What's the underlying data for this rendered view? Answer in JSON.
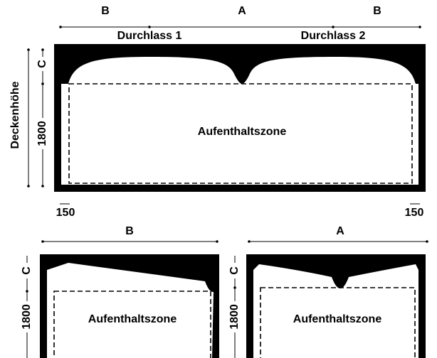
{
  "top": {
    "dims": [
      "B",
      "A",
      "B"
    ],
    "outlets": [
      "Durchlass 1",
      "Durchlass 2"
    ],
    "height_label": "Deckenhöhe",
    "c": "C",
    "h": 1800,
    "zone": "Aufenthaltszone",
    "margins": [
      150,
      150
    ]
  },
  "bottom": [
    {
      "dim": "B",
      "c": "C",
      "h": 1800,
      "zone": "Aufenthaltszone"
    },
    {
      "dim": "A",
      "c": "C",
      "h": 1800,
      "zone": "Aufenthaltszone"
    }
  ]
}
